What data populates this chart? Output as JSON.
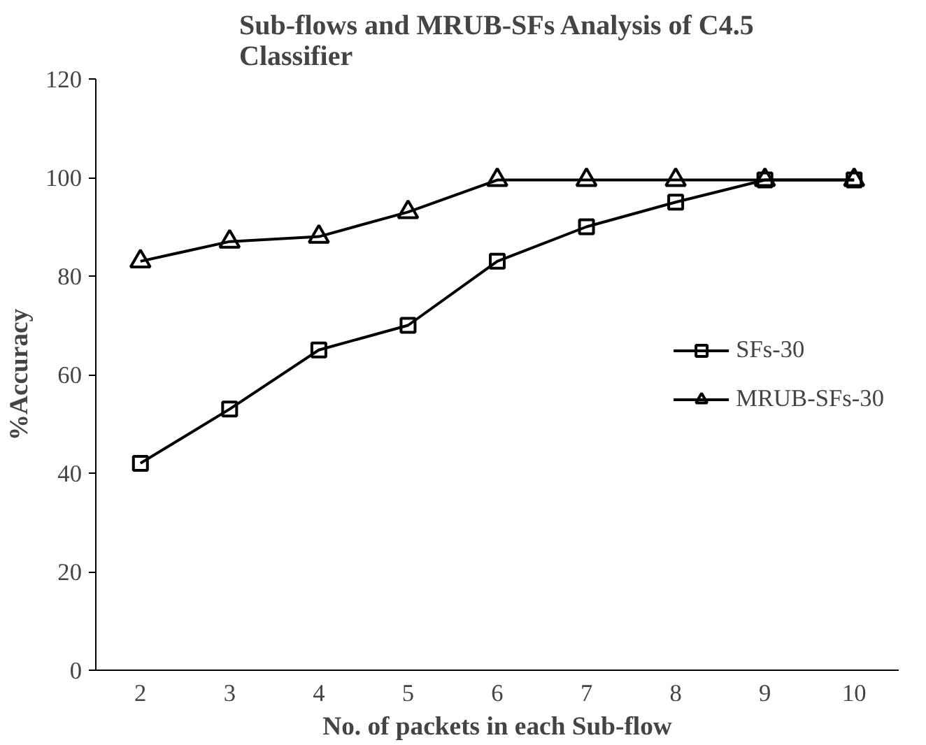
{
  "chart_data": {
    "type": "line",
    "title": "Sub-flows and MRUB-SFs Analysis of C4.5 Classifier",
    "xlabel": "No. of packets in each Sub-flow",
    "ylabel": "%Accuracy",
    "categories": [
      "2",
      "3",
      "4",
      "5",
      "6",
      "7",
      "8",
      "9",
      "10"
    ],
    "series": [
      {
        "name": "SFs-30",
        "color": "#000000",
        "marker": "square",
        "values": [
          42,
          53,
          65,
          70,
          83,
          90,
          95,
          99.5,
          99.5
        ]
      },
      {
        "name": "MRUB-SFs-30",
        "color": "#000000",
        "marker": "triangle",
        "values": [
          83,
          87,
          88,
          93,
          99.5,
          99.5,
          99.5,
          99.5,
          99.5
        ]
      }
    ],
    "ylim": [
      0,
      120
    ],
    "yticks": [
      0,
      20,
      40,
      60,
      80,
      100,
      120
    ],
    "grid": false,
    "legend": "right",
    "line_style": "solid"
  }
}
